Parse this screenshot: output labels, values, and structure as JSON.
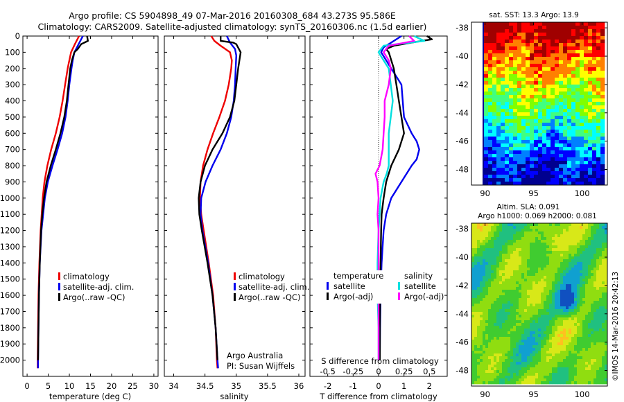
{
  "header": {
    "line1": "Argo profile: CS 5904898_49 07-Mar-2016 20160308_684 43.273S 95.586E",
    "line2": "Climatology: CARS2009. Satellite-adjusted climatology: synTS_20160306.nc (1.5d earlier)"
  },
  "colors": {
    "climatology": "#ee0000",
    "satellite": "#0000ee",
    "argo": "#000000",
    "sal_satellite": "#00e0e0",
    "sal_argo": "#ff00ff"
  },
  "chart_data": [
    {
      "id": "temperature",
      "type": "line",
      "xlabel": "temperature (deg C)",
      "ylim": [
        2100,
        0
      ],
      "xlim": [
        -1,
        31
      ],
      "xticks": [
        0,
        5,
        10,
        15,
        20,
        25,
        30
      ],
      "yticks": [
        0,
        100,
        200,
        300,
        400,
        500,
        600,
        700,
        800,
        900,
        1000,
        1100,
        1200,
        1300,
        1400,
        1500,
        1600,
        1700,
        1800,
        1900,
        2000
      ],
      "legend": [
        "climatology",
        "satellite-adj. clim.",
        "Argo(..raw -QC)"
      ],
      "series": [
        {
          "name": "climatology",
          "color": "#ee0000",
          "depth": [
            0,
            50,
            100,
            150,
            200,
            300,
            400,
            500,
            600,
            700,
            800,
            900,
            1000,
            1200,
            1400,
            1600,
            1800,
            2000,
            2050
          ],
          "values": [
            12.3,
            11.3,
            10.4,
            10.0,
            9.6,
            9.0,
            8.4,
            7.7,
            6.8,
            5.7,
            4.8,
            4.1,
            3.7,
            3.2,
            2.9,
            2.7,
            2.6,
            2.5,
            2.5
          ]
        },
        {
          "name": "satellite-adj. clim.",
          "color": "#0000ee",
          "depth": [
            0,
            50,
            100,
            150,
            200,
            300,
            400,
            500,
            600,
            700,
            800,
            900,
            1000,
            1200,
            1400,
            1600,
            1800,
            2000,
            2050
          ],
          "values": [
            13.2,
            12.2,
            11.2,
            10.8,
            10.5,
            10.0,
            9.6,
            9.1,
            8.3,
            7.2,
            6.0,
            4.9,
            4.2,
            3.4,
            3.0,
            2.8,
            2.7,
            2.6,
            2.6
          ]
        },
        {
          "name": "Argo(..raw -QC)",
          "color": "#000000",
          "depth": [
            0,
            30,
            50,
            80,
            100,
            150,
            200,
            300,
            400,
            500,
            600,
            700,
            800,
            900,
            1000,
            1100,
            1200,
            1400,
            1600,
            1800,
            2000
          ],
          "values": [
            14.2,
            14.4,
            12.8,
            12.0,
            11.2,
            10.6,
            10.2,
            9.8,
            9.4,
            8.8,
            7.9,
            6.8,
            5.6,
            4.6,
            4.0,
            3.6,
            3.3,
            3.0,
            2.8,
            2.7,
            2.6
          ]
        }
      ]
    },
    {
      "id": "salinity",
      "type": "line",
      "xlabel": "salinity",
      "ylim": [
        2100,
        0
      ],
      "xlim": [
        33.85,
        36.1
      ],
      "xticks": [
        34,
        34.5,
        35,
        35.5,
        36
      ],
      "xticklabels": [
        "34",
        "34.5",
        "35",
        "35.5",
        "36"
      ],
      "legend": [
        "climatology",
        "satellite-adj. clim.",
        "Argo(..raw -QC)"
      ],
      "annotation": [
        "Argo Australia",
        "PI: Susan Wijffels"
      ],
      "series": [
        {
          "name": "climatology",
          "color": "#ee0000",
          "depth": [
            0,
            30,
            60,
            100,
            150,
            200,
            300,
            400,
            500,
            600,
            700,
            800,
            900,
            1000,
            1100,
            1200,
            1400,
            1600,
            1800,
            2000,
            2050
          ],
          "values": [
            34.6,
            34.65,
            34.75,
            34.9,
            34.93,
            34.92,
            34.88,
            34.82,
            34.73,
            34.63,
            34.54,
            34.47,
            34.43,
            34.42,
            34.44,
            34.48,
            34.56,
            34.63,
            34.67,
            34.69,
            34.7
          ]
        },
        {
          "name": "satellite-adj. clim.",
          "color": "#0000ee",
          "depth": [
            0,
            40,
            80,
            120,
            200,
            300,
            400,
            500,
            600,
            700,
            800,
            900,
            1000,
            1100,
            1200,
            1400,
            1600,
            1800,
            2000,
            2050
          ],
          "values": [
            34.85,
            34.9,
            34.98,
            35.0,
            34.99,
            34.98,
            34.96,
            34.92,
            34.85,
            34.75,
            34.62,
            34.51,
            34.44,
            34.43,
            34.46,
            34.55,
            34.62,
            34.67,
            34.7,
            34.71
          ]
        },
        {
          "name": "Argo(..raw -QC)",
          "color": "#000000",
          "depth": [
            0,
            30,
            40,
            50,
            100,
            150,
            200,
            300,
            400,
            500,
            600,
            700,
            800,
            900,
            1000,
            1100,
            1200,
            1400,
            1600,
            1800,
            2000
          ],
          "values": [
            34.75,
            34.75,
            34.95,
            35.0,
            35.07,
            35.05,
            35.03,
            35.0,
            34.97,
            34.9,
            34.78,
            34.62,
            34.5,
            34.43,
            34.4,
            34.41,
            34.45,
            34.54,
            34.62,
            34.67,
            34.7
          ]
        }
      ]
    },
    {
      "id": "difference",
      "type": "line",
      "xlabel": "T difference from climatology",
      "top_xlabel": "S difference from climatology",
      "ylim": [
        2100,
        0
      ],
      "xlim": [
        -2.7,
        2.7
      ],
      "xticks": [
        -2,
        -1,
        0,
        1,
        2
      ],
      "sxlim": [
        -0.675,
        0.675
      ],
      "sxticks": [
        -0.5,
        -0.25,
        0,
        0.25,
        0.5
      ],
      "sxticklabels": [
        "-0.5",
        "-0.25",
        "0",
        "0.25",
        "0.5"
      ],
      "legend_titles": [
        "temperature",
        "salinity"
      ],
      "legend": [
        "satellite",
        "Argo(-adj)",
        "satellite",
        "Argo(-adj)"
      ],
      "series": [
        {
          "name": "temperature satellite",
          "axis": "T",
          "color": "#0000ee",
          "depth": [
            0,
            40,
            70,
            100,
            200,
            300,
            500,
            600,
            650,
            700,
            760,
            800,
            900,
            1000,
            1100,
            1200,
            1400,
            1600,
            1800,
            2000
          ],
          "values": [
            0.9,
            0.5,
            0.2,
            0.1,
            0.5,
            0.9,
            1.0,
            1.3,
            1.5,
            1.6,
            1.5,
            1.3,
            0.9,
            0.5,
            0.3,
            0.2,
            0.12,
            0.08,
            0.06,
            0.05
          ]
        },
        {
          "name": "temperature Argo(-adj)",
          "axis": "T",
          "color": "#000000",
          "depth": [
            0,
            20,
            40,
            60,
            80,
            100,
            200,
            300,
            400,
            500,
            600,
            700,
            800,
            900,
            1000,
            1100,
            1200,
            1400,
            1600,
            1800,
            2000
          ],
          "values": [
            1.9,
            2.1,
            1.3,
            0.6,
            0.3,
            0.4,
            0.6,
            0.7,
            0.8,
            0.9,
            1.0,
            0.8,
            0.5,
            0.3,
            0.2,
            0.12,
            0.1,
            0.08,
            0.06,
            0.05,
            0.05
          ]
        },
        {
          "name": "salinity satellite",
          "axis": "S",
          "color": "#00e0e0",
          "depth": [
            0,
            30,
            60,
            100,
            150,
            200,
            300,
            400,
            500,
            600,
            700,
            800,
            850,
            900,
            1000,
            1200,
            1400,
            1600,
            1800,
            2000
          ],
          "values": [
            0.35,
            0.45,
            0.05,
            0.0,
            0.05,
            0.1,
            0.12,
            0.14,
            0.12,
            0.1,
            0.1,
            0.1,
            0.08,
            0.05,
            0.02,
            0.0,
            -0.01,
            -0.01,
            0.0,
            0.0
          ]
        },
        {
          "name": "salinity Argo(-adj)",
          "axis": "S",
          "color": "#ff00ff",
          "depth": [
            0,
            30,
            60,
            100,
            150,
            200,
            300,
            400,
            500,
            600,
            700,
            800,
            850,
            900,
            1000,
            1100,
            1200,
            1400,
            1600,
            1800,
            2000
          ],
          "values": [
            0.3,
            0.35,
            0.1,
            0.05,
            0.1,
            0.12,
            0.1,
            0.06,
            0.06,
            0.05,
            0.04,
            0.01,
            -0.03,
            -0.01,
            0.0,
            -0.01,
            0.0,
            0.0,
            0.0,
            0.0,
            0.0
          ]
        }
      ]
    },
    {
      "id": "sst_map",
      "type": "heatmap",
      "title": "sat. SST: 13.3  Argo: 13.9",
      "xlim": [
        88.6,
        102.6
      ],
      "ylim": [
        -49.1,
        -37.6
      ],
      "xticks": [
        90,
        95,
        100
      ],
      "yticks": [
        -38,
        -40,
        -42,
        -44,
        -46,
        -48
      ],
      "palette": [
        "#00008f",
        "#0000ff",
        "#0080ff",
        "#00ffff",
        "#40ff80",
        "#80ff00",
        "#ffff00",
        "#ff8000",
        "#ff0000",
        "#a00000"
      ]
    },
    {
      "id": "sla_map",
      "type": "heatmap",
      "title": [
        "Altim. SLA: 0.091",
        "Argo h1000: 0.069 h2000: 0.081"
      ],
      "xlim": [
        88.6,
        102.6
      ],
      "ylim": [
        -49.1,
        -37.6
      ],
      "xticks": [
        90,
        95,
        100
      ],
      "yticks": [
        -38,
        -40,
        -42,
        -44,
        -46,
        -48
      ],
      "palette": [
        "#1050c0",
        "#10a0d0",
        "#20c080",
        "#40cc30",
        "#90dd10",
        "#d8e818",
        "#ffc020"
      ]
    }
  ],
  "watermark": "©IMOS 14-Mar-2016 20:42:13"
}
